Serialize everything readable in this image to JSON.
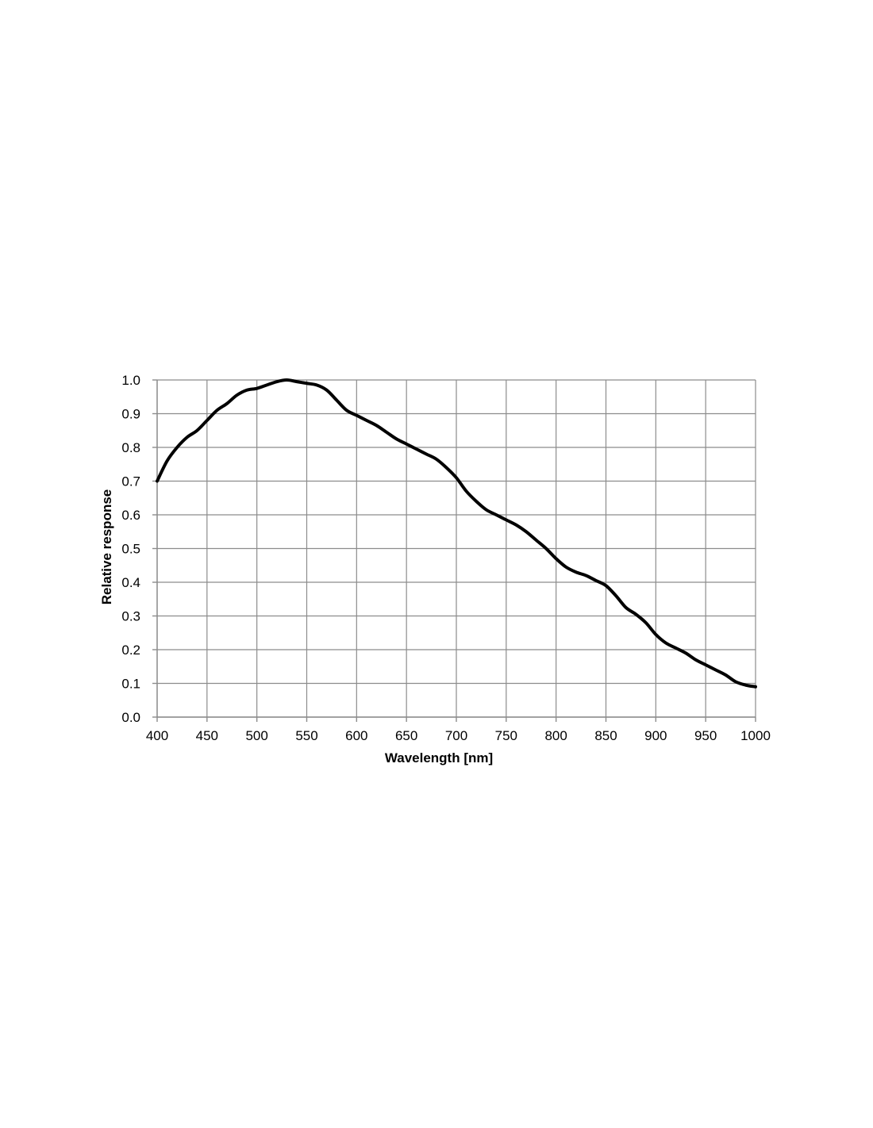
{
  "chart_data": {
    "type": "line",
    "title": "",
    "xlabel": "Wavelength [nm]",
    "ylabel": "Relative response",
    "xlim": [
      400,
      1000
    ],
    "ylim": [
      0.0,
      1.0
    ],
    "x_ticks": [
      "400",
      "450",
      "500",
      "550",
      "600",
      "650",
      "700",
      "750",
      "800",
      "850",
      "900",
      "950",
      "1000"
    ],
    "y_ticks": [
      "0.0",
      "0.1",
      "0.2",
      "0.3",
      "0.4",
      "0.5",
      "0.6",
      "0.7",
      "0.8",
      "0.9",
      "1.0"
    ],
    "grid": true,
    "legend": "none",
    "series": [
      {
        "color": "#000000",
        "x": [
          400,
          410,
          420,
          430,
          440,
          450,
          460,
          470,
          480,
          490,
          500,
          510,
          520,
          530,
          540,
          550,
          560,
          570,
          580,
          590,
          600,
          610,
          620,
          630,
          640,
          650,
          660,
          670,
          680,
          690,
          700,
          710,
          720,
          730,
          740,
          750,
          760,
          770,
          780,
          790,
          800,
          810,
          820,
          830,
          840,
          850,
          860,
          870,
          880,
          890,
          900,
          910,
          920,
          930,
          940,
          950,
          960,
          970,
          980,
          990,
          1000
        ],
        "y": [
          0.7,
          0.76,
          0.8,
          0.83,
          0.85,
          0.88,
          0.91,
          0.93,
          0.955,
          0.97,
          0.975,
          0.985,
          0.995,
          1.0,
          0.995,
          0.99,
          0.985,
          0.97,
          0.94,
          0.91,
          0.895,
          0.88,
          0.865,
          0.845,
          0.825,
          0.81,
          0.795,
          0.78,
          0.765,
          0.74,
          0.71,
          0.67,
          0.64,
          0.615,
          0.6,
          0.585,
          0.57,
          0.55,
          0.525,
          0.5,
          0.47,
          0.445,
          0.43,
          0.42,
          0.405,
          0.39,
          0.36,
          0.325,
          0.305,
          0.28,
          0.245,
          0.22,
          0.205,
          0.19,
          0.17,
          0.155,
          0.14,
          0.125,
          0.105,
          0.095,
          0.09
        ]
      }
    ]
  }
}
